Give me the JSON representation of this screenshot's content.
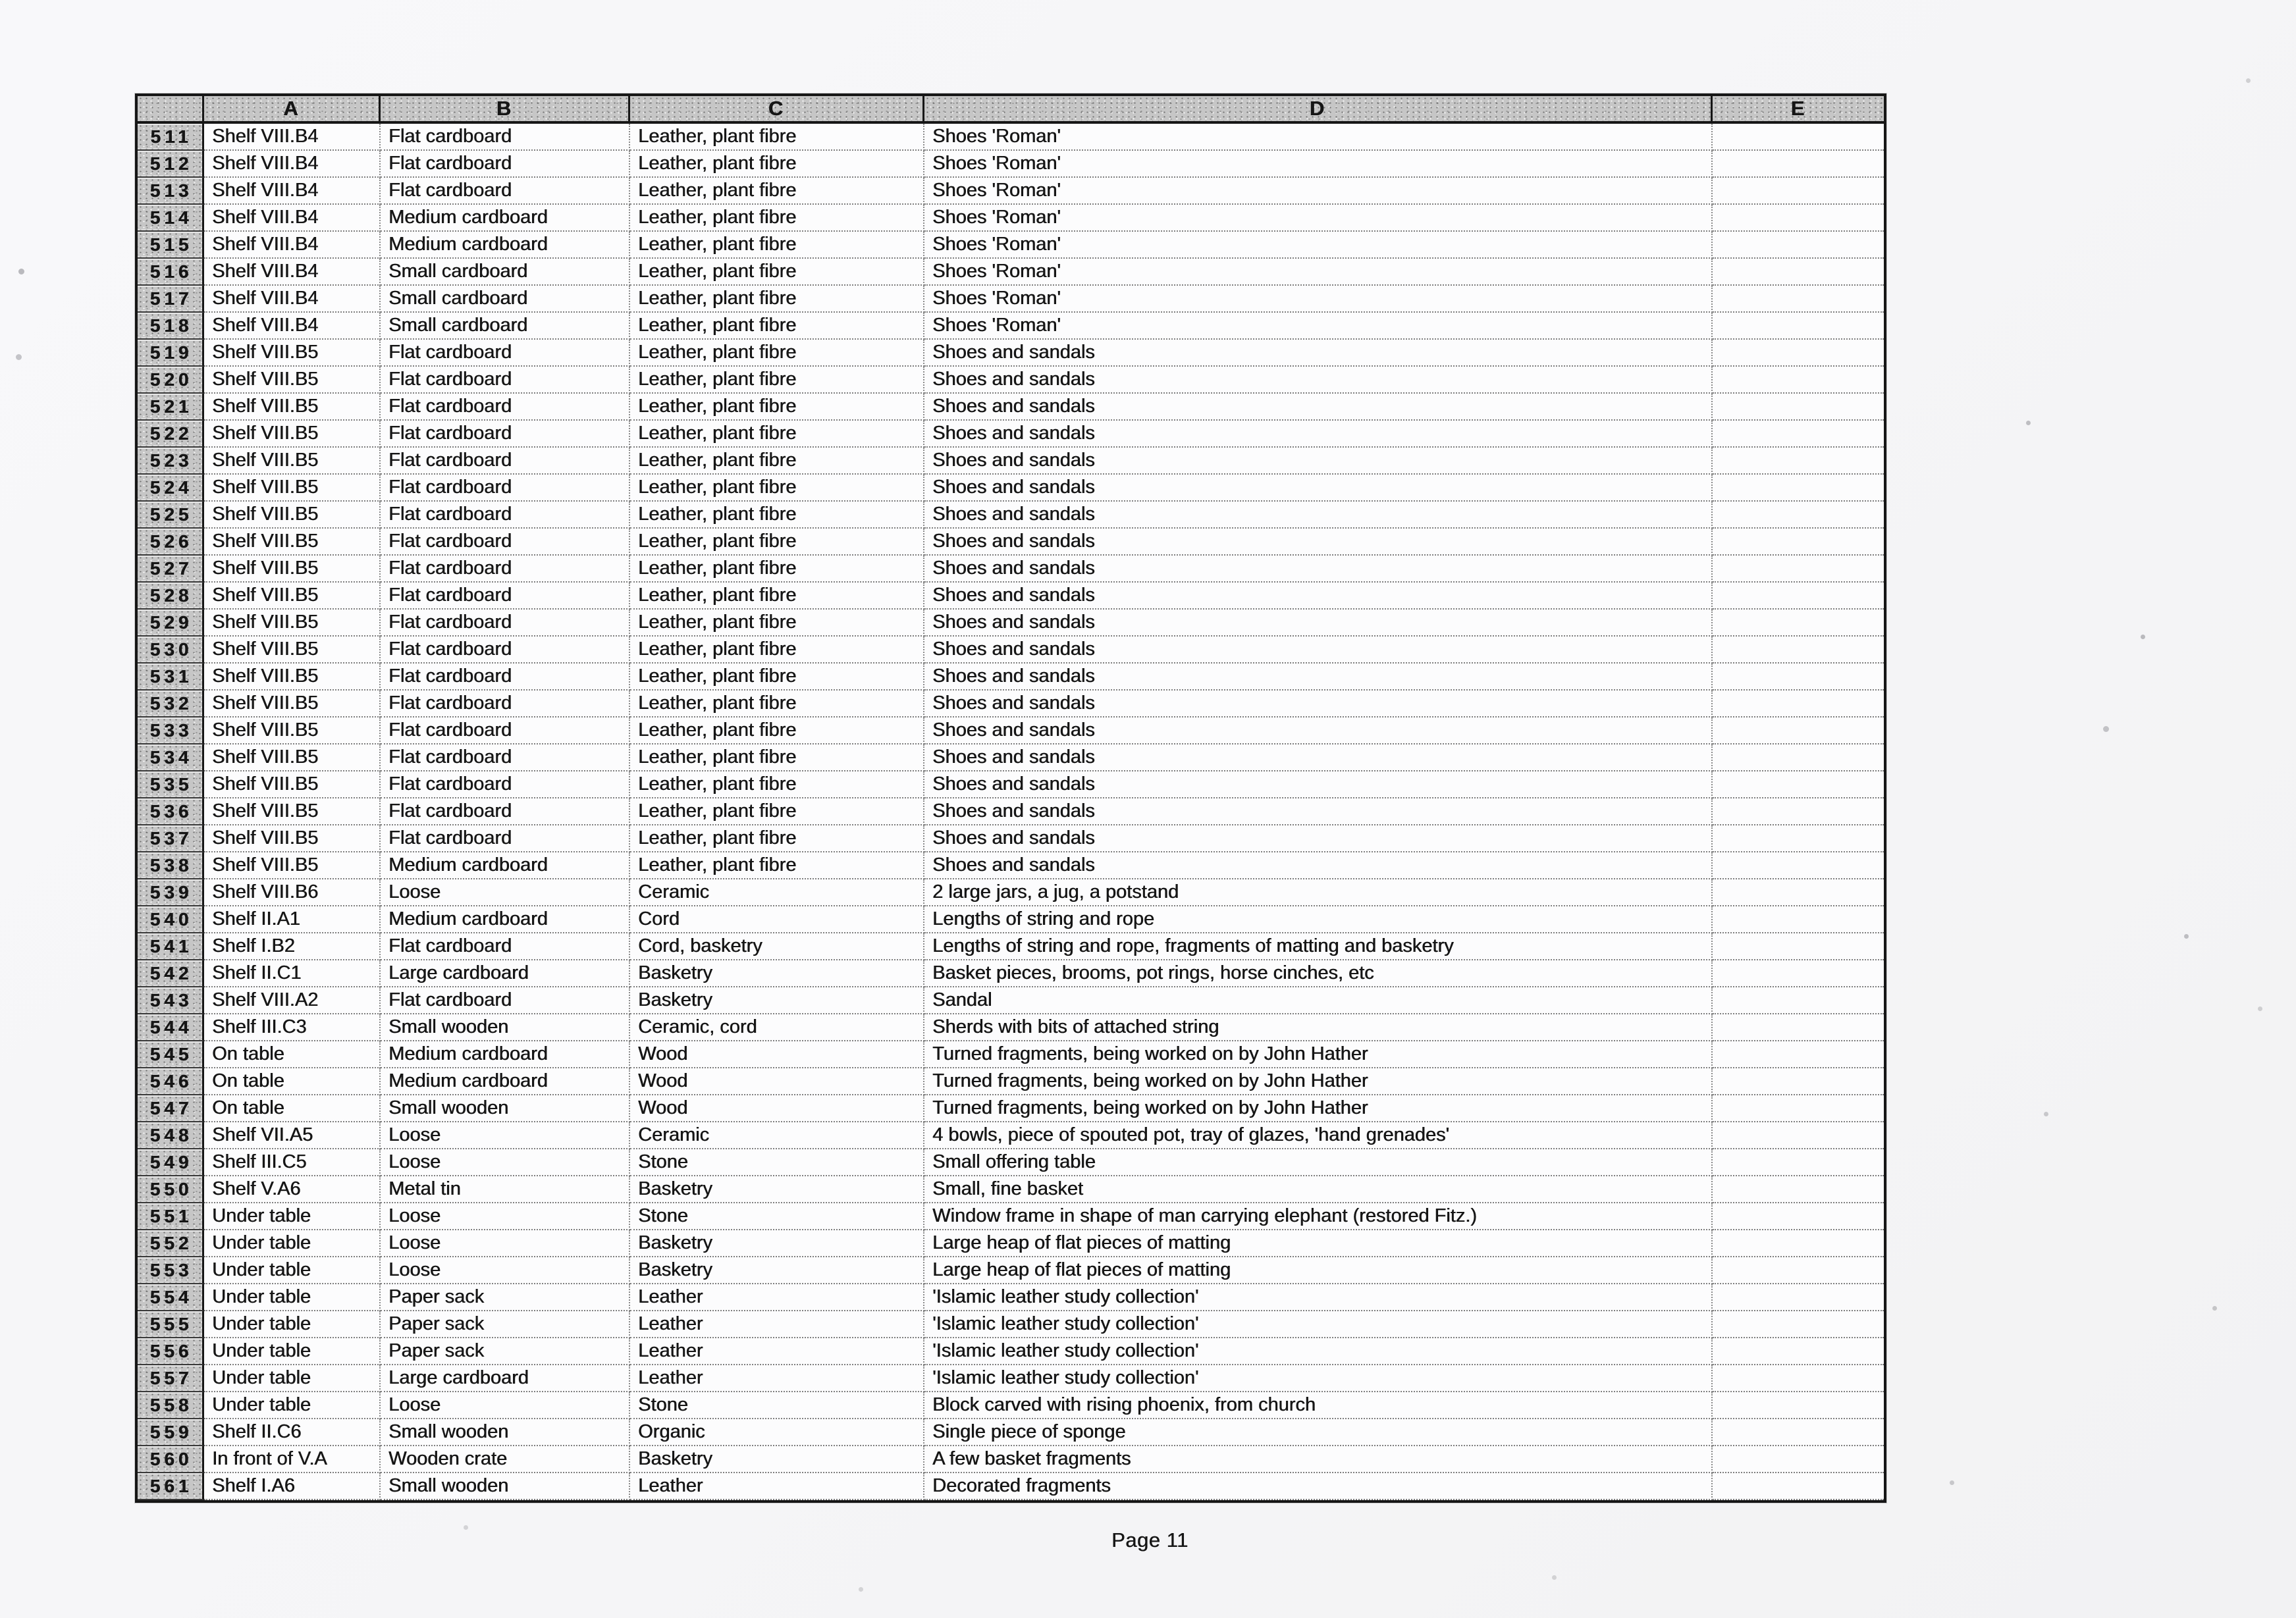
{
  "paper": {
    "page_label": "Page 11"
  },
  "colors": {
    "paper": "#f6f6f8",
    "ink": "#161616",
    "header_fill": "#c6c6c6"
  },
  "table": {
    "corner_header": "",
    "column_headers": [
      "A",
      "B",
      "C",
      "D",
      "E"
    ],
    "rows": [
      {
        "num": "511",
        "A": "Shelf VIII.B4",
        "B": "Flat cardboard",
        "C": "Leather, plant fibre",
        "D": "Shoes 'Roman'",
        "E": ""
      },
      {
        "num": "512",
        "A": "Shelf VIII.B4",
        "B": "Flat cardboard",
        "C": "Leather, plant fibre",
        "D": "Shoes 'Roman'",
        "E": ""
      },
      {
        "num": "513",
        "A": "Shelf VIII.B4",
        "B": "Flat cardboard",
        "C": "Leather, plant fibre",
        "D": "Shoes 'Roman'",
        "E": ""
      },
      {
        "num": "514",
        "A": "Shelf VIII.B4",
        "B": "Medium cardboard",
        "C": "Leather, plant fibre",
        "D": "Shoes 'Roman'",
        "E": ""
      },
      {
        "num": "515",
        "A": "Shelf VIII.B4",
        "B": "Medium cardboard",
        "C": "Leather, plant fibre",
        "D": "Shoes 'Roman'",
        "E": ""
      },
      {
        "num": "516",
        "A": "Shelf VIII.B4",
        "B": "Small cardboard",
        "C": "Leather, plant fibre",
        "D": "Shoes 'Roman'",
        "E": ""
      },
      {
        "num": "517",
        "A": "Shelf VIII.B4",
        "B": "Small cardboard",
        "C": "Leather, plant fibre",
        "D": "Shoes 'Roman'",
        "E": ""
      },
      {
        "num": "518",
        "A": "Shelf VIII.B4",
        "B": "Small cardboard",
        "C": "Leather, plant fibre",
        "D": "Shoes 'Roman'",
        "E": ""
      },
      {
        "num": "519",
        "A": "Shelf VIII.B5",
        "B": "Flat cardboard",
        "C": "Leather, plant fibre",
        "D": "Shoes and sandals",
        "E": ""
      },
      {
        "num": "520",
        "A": "Shelf VIII.B5",
        "B": "Flat cardboard",
        "C": "Leather, plant fibre",
        "D": "Shoes and sandals",
        "E": ""
      },
      {
        "num": "521",
        "A": "Shelf VIII.B5",
        "B": "Flat cardboard",
        "C": "Leather, plant fibre",
        "D": "Shoes and sandals",
        "E": ""
      },
      {
        "num": "522",
        "A": "Shelf VIII.B5",
        "B": "Flat cardboard",
        "C": "Leather, plant fibre",
        "D": "Shoes and sandals",
        "E": ""
      },
      {
        "num": "523",
        "A": "Shelf VIII.B5",
        "B": "Flat cardboard",
        "C": "Leather, plant fibre",
        "D": "Shoes and sandals",
        "E": ""
      },
      {
        "num": "524",
        "A": "Shelf VIII.B5",
        "B": "Flat cardboard",
        "C": "Leather, plant fibre",
        "D": "Shoes and sandals",
        "E": ""
      },
      {
        "num": "525",
        "A": "Shelf VIII.B5",
        "B": "Flat cardboard",
        "C": "Leather, plant fibre",
        "D": "Shoes and sandals",
        "E": ""
      },
      {
        "num": "526",
        "A": "Shelf VIII.B5",
        "B": "Flat cardboard",
        "C": "Leather, plant fibre",
        "D": "Shoes and sandals",
        "E": ""
      },
      {
        "num": "527",
        "A": "Shelf VIII.B5",
        "B": "Flat cardboard",
        "C": "Leather, plant fibre",
        "D": "Shoes and sandals",
        "E": ""
      },
      {
        "num": "528",
        "A": "Shelf VIII.B5",
        "B": "Flat cardboard",
        "C": "Leather, plant fibre",
        "D": "Shoes and sandals",
        "E": ""
      },
      {
        "num": "529",
        "A": "Shelf VIII.B5",
        "B": "Flat cardboard",
        "C": "Leather, plant fibre",
        "D": "Shoes and sandals",
        "E": ""
      },
      {
        "num": "530",
        "A": "Shelf VIII.B5",
        "B": "Flat cardboard",
        "C": "Leather, plant fibre",
        "D": "Shoes and sandals",
        "E": ""
      },
      {
        "num": "531",
        "A": "Shelf VIII.B5",
        "B": "Flat cardboard",
        "C": "Leather, plant fibre",
        "D": "Shoes and sandals",
        "E": ""
      },
      {
        "num": "532",
        "A": "Shelf VIII.B5",
        "B": "Flat cardboard",
        "C": "Leather, plant fibre",
        "D": "Shoes and sandals",
        "E": ""
      },
      {
        "num": "533",
        "A": "Shelf VIII.B5",
        "B": "Flat cardboard",
        "C": "Leather, plant fibre",
        "D": "Shoes and sandals",
        "E": ""
      },
      {
        "num": "534",
        "A": "Shelf VIII.B5",
        "B": "Flat cardboard",
        "C": "Leather, plant fibre",
        "D": "Shoes and sandals",
        "E": ""
      },
      {
        "num": "535",
        "A": "Shelf VIII.B5",
        "B": "Flat cardboard",
        "C": "Leather, plant fibre",
        "D": "Shoes and sandals",
        "E": ""
      },
      {
        "num": "536",
        "A": "Shelf VIII.B5",
        "B": "Flat cardboard",
        "C": "Leather, plant fibre",
        "D": "Shoes and sandals",
        "E": ""
      },
      {
        "num": "537",
        "A": "Shelf VIII.B5",
        "B": "Flat cardboard",
        "C": "Leather, plant fibre",
        "D": "Shoes and sandals",
        "E": ""
      },
      {
        "num": "538",
        "A": "Shelf VIII.B5",
        "B": "Medium cardboard",
        "C": "Leather, plant fibre",
        "D": "Shoes and sandals",
        "E": ""
      },
      {
        "num": "539",
        "A": "Shelf VIII.B6",
        "B": "Loose",
        "C": "Ceramic",
        "D": "2 large jars, a jug, a potstand",
        "E": ""
      },
      {
        "num": "540",
        "A": "Shelf II.A1",
        "B": "Medium cardboard",
        "C": "Cord",
        "D": "Lengths of string and rope",
        "E": ""
      },
      {
        "num": "541",
        "A": "Shelf I.B2",
        "B": "Flat cardboard",
        "C": "Cord, basketry",
        "D": "Lengths of string and rope, fragments of matting and basketry",
        "E": ""
      },
      {
        "num": "542",
        "A": "Shelf II.C1",
        "B": "Large cardboard",
        "C": "Basketry",
        "D": "Basket pieces, brooms, pot rings, horse cinches, etc",
        "E": ""
      },
      {
        "num": "543",
        "A": "Shelf VIII.A2",
        "B": "Flat cardboard",
        "C": "Basketry",
        "D": "Sandal",
        "E": ""
      },
      {
        "num": "544",
        "A": "Shelf III.C3",
        "B": "Small wooden",
        "C": "Ceramic, cord",
        "D": "Sherds with bits of attached string",
        "E": ""
      },
      {
        "num": "545",
        "A": "On table",
        "B": "Medium cardboard",
        "C": "Wood",
        "D": "Turned fragments, being worked on by John Hather",
        "E": ""
      },
      {
        "num": "546",
        "A": "On table",
        "B": "Medium cardboard",
        "C": "Wood",
        "D": "Turned fragments, being worked on by John Hather",
        "E": ""
      },
      {
        "num": "547",
        "A": "On table",
        "B": "Small wooden",
        "C": "Wood",
        "D": "Turned fragments, being worked on by John Hather",
        "E": ""
      },
      {
        "num": "548",
        "A": "Shelf VII.A5",
        "B": "Loose",
        "C": "Ceramic",
        "D": "4 bowls, piece of spouted pot, tray of glazes, 'hand grenades'",
        "E": ""
      },
      {
        "num": "549",
        "A": "Shelf III.C5",
        "B": "Loose",
        "C": "Stone",
        "D": "Small offering table",
        "E": ""
      },
      {
        "num": "550",
        "A": "Shelf V.A6",
        "B": "Metal tin",
        "C": "Basketry",
        "D": "Small, fine basket",
        "E": ""
      },
      {
        "num": "551",
        "A": "Under table",
        "B": "Loose",
        "C": "Stone",
        "D": "Window frame in shape of man carrying elephant (restored Fitz.)",
        "E": ""
      },
      {
        "num": "552",
        "A": "Under table",
        "B": "Loose",
        "C": "Basketry",
        "D": "Large heap of flat pieces of matting",
        "E": ""
      },
      {
        "num": "553",
        "A": "Under table",
        "B": "Loose",
        "C": "Basketry",
        "D": "Large heap of flat pieces of matting",
        "E": ""
      },
      {
        "num": "554",
        "A": "Under table",
        "B": "Paper sack",
        "C": "Leather",
        "D": "'Islamic leather study collection'",
        "E": ""
      },
      {
        "num": "555",
        "A": "Under table",
        "B": "Paper sack",
        "C": "Leather",
        "D": "'Islamic leather study collection'",
        "E": ""
      },
      {
        "num": "556",
        "A": "Under table",
        "B": "Paper sack",
        "C": "Leather",
        "D": "'Islamic leather study collection'",
        "E": ""
      },
      {
        "num": "557",
        "A": "Under table",
        "B": "Large cardboard",
        "C": "Leather",
        "D": "'Islamic leather study collection'",
        "E": ""
      },
      {
        "num": "558",
        "A": "Under table",
        "B": "Loose",
        "C": "Stone",
        "D": "Block carved with rising phoenix, from church",
        "E": ""
      },
      {
        "num": "559",
        "A": "Shelf II.C6",
        "B": "Small wooden",
        "C": "Organic",
        "D": "Single piece of sponge",
        "E": ""
      },
      {
        "num": "560",
        "A": "In front of V.A",
        "B": "Wooden crate",
        "C": "Basketry",
        "D": "A few basket fragments",
        "E": ""
      },
      {
        "num": "561",
        "A": "Shelf I.A6",
        "B": "Small wooden",
        "C": "Leather",
        "D": "Decorated fragments",
        "E": ""
      }
    ]
  }
}
